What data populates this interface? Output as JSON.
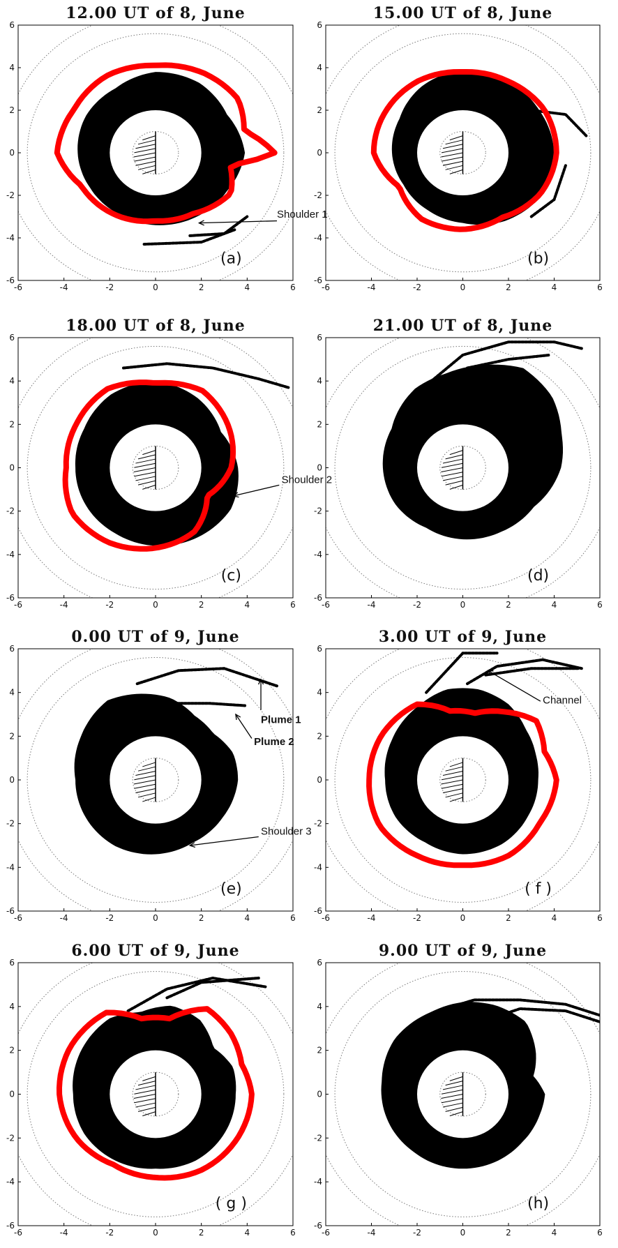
{
  "figure": {
    "axis_ticks": [
      "-6",
      "-4",
      "-2",
      "0",
      "2",
      "4",
      "6"
    ],
    "colors": {
      "plasma": "#000000",
      "boundary": "#ff0000",
      "orbit": "#777777"
    },
    "panels": [
      {
        "id": "a",
        "title": "12.00 UT of 8, June",
        "label": "(a)",
        "annotations": [
          {
            "text": "Shoulder 1",
            "bold": false
          }
        ]
      },
      {
        "id": "b",
        "title": "15.00 UT of 8, June",
        "label": "(b)",
        "annotations": []
      },
      {
        "id": "c",
        "title": "18.00 UT of 8, June",
        "label": "(c)",
        "annotations": [
          {
            "text": "Shoulder 2",
            "bold": false
          }
        ]
      },
      {
        "id": "d",
        "title": "21.00 UT of 8, June",
        "label": "(d)",
        "annotations": []
      },
      {
        "id": "e",
        "title": "0.00 UT of 9, June",
        "label": "(e)",
        "annotations": [
          {
            "text": "Plume 1",
            "bold": true
          },
          {
            "text": "Plume 2",
            "bold": true
          },
          {
            "text": "Shoulder 3",
            "bold": false
          }
        ]
      },
      {
        "id": "f",
        "title": "3.00 UT of 9, June",
        "label": "( f )",
        "annotations": [
          {
            "text": "Channel",
            "bold": false
          }
        ]
      },
      {
        "id": "g",
        "title": "6.00 UT of 9, June",
        "label": "( g )",
        "annotations": []
      },
      {
        "id": "h",
        "title": "9.00 UT of 9, June",
        "label": "(h)",
        "annotations": []
      }
    ]
  }
}
